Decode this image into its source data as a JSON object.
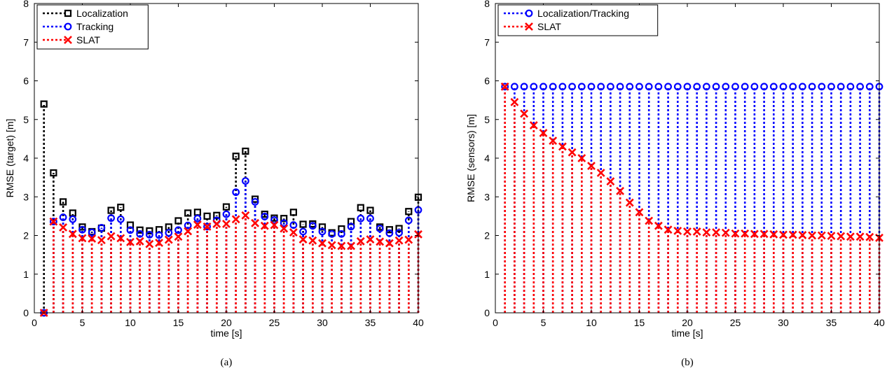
{
  "chart_data": [
    {
      "type": "scatter",
      "caption": "(a)",
      "xlabel": "time [s]",
      "ylabel": "RMSE (target) [m]",
      "xlim": [
        0,
        40
      ],
      "ylim": [
        0,
        8
      ],
      "xticks": [
        0,
        5,
        10,
        15,
        20,
        25,
        30,
        35,
        40
      ],
      "yticks": [
        0,
        1,
        2,
        3,
        4,
        5,
        6,
        7,
        8
      ],
      "grid": false,
      "legend_position": "top-left",
      "x": [
        1,
        2,
        3,
        4,
        5,
        6,
        7,
        8,
        9,
        10,
        11,
        12,
        13,
        14,
        15,
        16,
        17,
        18,
        19,
        20,
        21,
        22,
        23,
        24,
        25,
        26,
        27,
        28,
        29,
        30,
        31,
        32,
        33,
        34,
        35,
        36,
        37,
        38,
        39,
        40
      ],
      "series": [
        {
          "name": "Localization",
          "color": "#000000",
          "marker": "square",
          "values": [
            5.4,
            3.62,
            2.87,
            2.58,
            2.22,
            2.1,
            2.19,
            2.65,
            2.73,
            2.27,
            2.14,
            2.12,
            2.15,
            2.22,
            2.38,
            2.58,
            2.6,
            2.5,
            2.52,
            2.74,
            4.05,
            4.18,
            2.94,
            2.55,
            2.45,
            2.44,
            2.6,
            2.29,
            2.3,
            2.22,
            2.07,
            2.17,
            2.36,
            2.72,
            2.65,
            2.22,
            2.15,
            2.18,
            2.62,
            2.99
          ]
        },
        {
          "name": "Tracking",
          "color": "#0000ff",
          "marker": "circle",
          "values": [
            0.0,
            2.36,
            2.47,
            2.42,
            2.15,
            2.08,
            2.2,
            2.45,
            2.42,
            2.14,
            2.04,
            2.02,
            2.01,
            2.07,
            2.14,
            2.26,
            2.44,
            2.23,
            2.39,
            2.55,
            3.12,
            3.41,
            2.87,
            2.49,
            2.4,
            2.32,
            2.27,
            2.1,
            2.25,
            2.1,
            2.04,
            2.04,
            2.23,
            2.44,
            2.44,
            2.18,
            2.06,
            2.07,
            2.39,
            2.66
          ]
        },
        {
          "name": "SLAT",
          "color": "#ff0000",
          "marker": "x",
          "values": [
            0.0,
            2.36,
            2.21,
            2.04,
            1.93,
            1.92,
            1.88,
            1.98,
            1.93,
            1.83,
            1.85,
            1.78,
            1.81,
            1.89,
            1.97,
            2.11,
            2.28,
            2.23,
            2.3,
            2.3,
            2.42,
            2.52,
            2.32,
            2.25,
            2.27,
            2.18,
            2.08,
            1.9,
            1.87,
            1.8,
            1.75,
            1.73,
            1.73,
            1.85,
            1.9,
            1.84,
            1.8,
            1.87,
            1.89,
            2.03
          ]
        }
      ]
    },
    {
      "type": "scatter",
      "caption": "(b)",
      "xlabel": "time [s]",
      "ylabel": "RMSE (sensors) [m]",
      "xlim": [
        0,
        40
      ],
      "ylim": [
        0,
        8
      ],
      "xticks": [
        0,
        5,
        10,
        15,
        20,
        25,
        30,
        35,
        40
      ],
      "yticks": [
        0,
        1,
        2,
        3,
        4,
        5,
        6,
        7,
        8
      ],
      "grid": false,
      "legend_position": "top-left",
      "x": [
        1,
        2,
        3,
        4,
        5,
        6,
        7,
        8,
        9,
        10,
        11,
        12,
        13,
        14,
        15,
        16,
        17,
        18,
        19,
        20,
        21,
        22,
        23,
        24,
        25,
        26,
        27,
        28,
        29,
        30,
        31,
        32,
        33,
        34,
        35,
        36,
        37,
        38,
        39,
        40
      ],
      "series": [
        {
          "name": "Localization/Tracking",
          "color": "#0000ff",
          "marker": "circle",
          "values": [
            5.85,
            5.85,
            5.85,
            5.85,
            5.85,
            5.85,
            5.85,
            5.85,
            5.85,
            5.85,
            5.85,
            5.85,
            5.85,
            5.85,
            5.85,
            5.85,
            5.85,
            5.85,
            5.85,
            5.85,
            5.85,
            5.85,
            5.85,
            5.85,
            5.85,
            5.85,
            5.85,
            5.85,
            5.85,
            5.85,
            5.85,
            5.85,
            5.85,
            5.85,
            5.85,
            5.85,
            5.85,
            5.85,
            5.85,
            5.85
          ]
        },
        {
          "name": "SLAT",
          "color": "#ff0000",
          "marker": "x",
          "values": [
            5.85,
            5.45,
            5.15,
            4.85,
            4.65,
            4.45,
            4.3,
            4.15,
            4.0,
            3.8,
            3.62,
            3.4,
            3.15,
            2.85,
            2.6,
            2.38,
            2.25,
            2.15,
            2.12,
            2.1,
            2.1,
            2.08,
            2.08,
            2.07,
            2.05,
            2.05,
            2.04,
            2.04,
            2.03,
            2.02,
            2.02,
            2.01,
            2.0,
            2.0,
            1.99,
            1.98,
            1.97,
            1.97,
            1.96,
            1.94
          ]
        }
      ]
    }
  ]
}
